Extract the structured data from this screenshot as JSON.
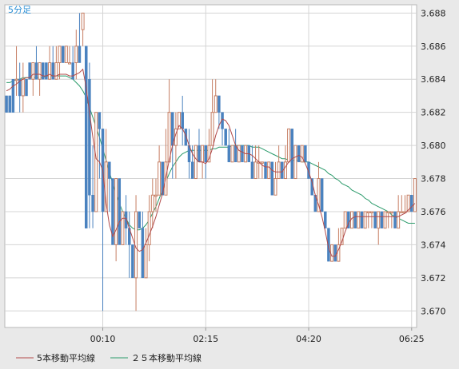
{
  "chart_data": {
    "type": "candlestick",
    "title": "5分足",
    "ylim": [
      3.669,
      3.6885
    ],
    "xlim": [
      -0.5,
      123.5
    ],
    "grid": true,
    "y_ticks": [
      "3.670",
      "3.672",
      "3.674",
      "3.676",
      "3.678",
      "3.680",
      "3.682",
      "3.684",
      "3.686",
      "3.688"
    ],
    "x_ticks": [
      {
        "index": 29,
        "label": "00:10"
      },
      {
        "index": 60,
        "label": "02:15"
      },
      {
        "index": 91,
        "label": "04:20"
      },
      {
        "index": 122,
        "label": "06:25"
      }
    ],
    "legend": [
      "5本移動平均線",
      "２５本移動平均線"
    ],
    "colors": {
      "up": "#c67e63",
      "down": "#4a82bf",
      "ma5": "#b24a4a",
      "ma25": "#2a9a6a",
      "grid": "#d4d4d4",
      "title": "#2a8fd6"
    },
    "candles": [
      [
        3.683,
        3.682,
        3.683,
        3.682
      ],
      [
        3.683,
        3.682,
        3.683,
        3.682
      ],
      [
        3.684,
        3.682,
        3.684,
        3.682
      ],
      [
        3.684,
        3.684,
        3.686,
        3.683
      ],
      [
        3.684,
        3.683,
        3.685,
        3.682
      ],
      [
        3.683,
        3.684,
        3.685,
        3.682
      ],
      [
        3.684,
        3.683,
        3.684,
        3.683
      ],
      [
        3.685,
        3.684,
        3.685,
        3.684
      ],
      [
        3.684,
        3.685,
        3.685,
        3.683
      ],
      [
        3.685,
        3.684,
        3.686,
        3.684
      ],
      [
        3.684,
        3.685,
        3.685,
        3.683
      ],
      [
        3.685,
        3.684,
        3.685,
        3.684
      ],
      [
        3.685,
        3.684,
        3.685,
        3.684
      ],
      [
        3.684,
        3.685,
        3.686,
        3.684
      ],
      [
        3.685,
        3.684,
        3.686,
        3.684
      ],
      [
        3.684,
        3.685,
        3.686,
        3.684
      ],
      [
        3.685,
        3.686,
        3.686,
        3.684
      ],
      [
        3.686,
        3.685,
        3.686,
        3.685
      ],
      [
        3.685,
        3.686,
        3.686,
        3.685
      ],
      [
        3.685,
        3.685,
        3.686,
        3.685
      ],
      [
        3.685,
        3.684,
        3.686,
        3.684
      ],
      [
        3.685,
        3.686,
        3.687,
        3.684
      ],
      [
        3.686,
        3.685,
        3.688,
        3.685
      ],
      [
        3.687,
        3.688,
        3.688,
        3.686
      ],
      [
        3.686,
        3.675,
        3.686,
        3.675
      ],
      [
        3.684,
        3.677,
        3.685,
        3.675
      ],
      [
        3.677,
        3.676,
        3.68,
        3.675
      ],
      [
        3.676,
        3.682,
        3.682,
        3.676
      ],
      [
        3.682,
        3.681,
        3.682,
        3.678
      ],
      [
        3.681,
        3.676,
        3.681,
        3.67
      ],
      [
        3.676,
        3.679,
        3.681,
        3.676
      ],
      [
        3.679,
        3.678,
        3.679,
        3.676
      ],
      [
        3.678,
        3.674,
        3.678,
        3.674
      ],
      [
        3.674,
        3.678,
        3.678,
        3.673
      ],
      [
        3.678,
        3.674,
        3.678,
        3.674
      ],
      [
        3.674,
        3.676,
        3.676,
        3.674
      ],
      [
        3.676,
        3.675,
        3.677,
        3.674
      ],
      [
        3.675,
        3.674,
        3.676,
        3.672
      ],
      [
        3.674,
        3.672,
        3.674,
        3.672
      ],
      [
        3.672,
        3.676,
        3.677,
        3.67
      ],
      [
        3.676,
        3.675,
        3.676,
        3.675
      ],
      [
        3.675,
        3.672,
        3.676,
        3.672
      ],
      [
        3.672,
        3.674,
        3.675,
        3.672
      ],
      [
        3.674,
        3.676,
        3.677,
        3.673
      ],
      [
        3.676,
        3.677,
        3.678,
        3.675
      ],
      [
        3.677,
        3.677,
        3.678,
        3.676
      ],
      [
        3.677,
        3.679,
        3.68,
        3.677
      ],
      [
        3.679,
        3.677,
        3.679,
        3.677
      ],
      [
        3.677,
        3.679,
        3.681,
        3.677
      ],
      [
        3.679,
        3.682,
        3.684,
        3.679
      ],
      [
        3.682,
        3.68,
        3.682,
        3.678
      ],
      [
        3.68,
        3.681,
        3.682,
        3.678
      ],
      [
        3.681,
        3.682,
        3.682,
        3.681
      ],
      [
        3.682,
        3.681,
        3.683,
        3.68
      ],
      [
        3.681,
        3.68,
        3.681,
        3.68
      ],
      [
        3.68,
        3.679,
        3.681,
        3.678
      ],
      [
        3.679,
        3.678,
        3.68,
        3.678
      ],
      [
        3.678,
        3.68,
        3.68,
        3.678
      ],
      [
        3.68,
        3.679,
        3.681,
        3.679
      ],
      [
        3.679,
        3.68,
        3.68,
        3.678
      ],
      [
        3.68,
        3.679,
        3.68,
        3.678
      ],
      [
        3.679,
        3.68,
        3.681,
        3.679
      ],
      [
        3.68,
        3.682,
        3.684,
        3.68
      ],
      [
        3.682,
        3.683,
        3.684,
        3.682
      ],
      [
        3.683,
        3.682,
        3.683,
        3.681
      ],
      [
        3.682,
        3.681,
        3.682,
        3.68
      ],
      [
        3.681,
        3.68,
        3.681,
        3.68
      ],
      [
        3.68,
        3.679,
        3.681,
        3.679
      ],
      [
        3.679,
        3.68,
        3.68,
        3.679
      ],
      [
        3.68,
        3.679,
        3.681,
        3.679
      ],
      [
        3.679,
        3.68,
        3.68,
        3.679
      ],
      [
        3.68,
        3.679,
        3.68,
        3.679
      ],
      [
        3.679,
        3.68,
        3.68,
        3.679
      ],
      [
        3.68,
        3.679,
        3.68,
        3.679
      ],
      [
        3.679,
        3.678,
        3.68,
        3.678
      ],
      [
        3.678,
        3.679,
        3.68,
        3.678
      ],
      [
        3.679,
        3.679,
        3.68,
        3.678
      ],
      [
        3.679,
        3.679,
        3.679,
        3.678
      ],
      [
        3.679,
        3.678,
        3.679,
        3.678
      ],
      [
        3.678,
        3.679,
        3.679,
        3.678
      ],
      [
        3.679,
        3.677,
        3.679,
        3.677
      ],
      [
        3.677,
        3.678,
        3.679,
        3.677
      ],
      [
        3.678,
        3.679,
        3.68,
        3.678
      ],
      [
        3.679,
        3.678,
        3.679,
        3.678
      ],
      [
        3.678,
        3.679,
        3.68,
        3.678
      ],
      [
        3.679,
        3.681,
        3.681,
        3.679
      ],
      [
        3.681,
        3.678,
        3.681,
        3.678
      ],
      [
        3.678,
        3.68,
        3.68,
        3.678
      ],
      [
        3.68,
        3.679,
        3.68,
        3.679
      ],
      [
        3.679,
        3.68,
        3.68,
        3.679
      ],
      [
        3.68,
        3.679,
        3.68,
        3.679
      ],
      [
        3.679,
        3.678,
        3.679,
        3.678
      ],
      [
        3.678,
        3.677,
        3.678,
        3.677
      ],
      [
        3.677,
        3.676,
        3.677,
        3.676
      ],
      [
        3.676,
        3.678,
        3.679,
        3.676
      ],
      [
        3.678,
        3.676,
        3.678,
        3.676
      ],
      [
        3.676,
        3.675,
        3.676,
        3.675
      ],
      [
        3.675,
        3.673,
        3.675,
        3.673
      ],
      [
        3.673,
        3.674,
        3.674,
        3.673
      ],
      [
        3.674,
        3.673,
        3.674,
        3.673
      ],
      [
        3.673,
        3.674,
        3.675,
        3.673
      ],
      [
        3.674,
        3.675,
        3.675,
        3.674
      ],
      [
        3.675,
        3.676,
        3.676,
        3.675
      ],
      [
        3.676,
        3.675,
        3.676,
        3.675
      ],
      [
        3.675,
        3.676,
        3.676,
        3.675
      ],
      [
        3.676,
        3.675,
        3.676,
        3.675
      ],
      [
        3.675,
        3.676,
        3.676,
        3.675
      ],
      [
        3.676,
        3.675,
        3.676,
        3.675
      ],
      [
        3.675,
        3.676,
        3.676,
        3.675
      ],
      [
        3.676,
        3.676,
        3.676,
        3.675
      ],
      [
        3.676,
        3.676,
        3.676,
        3.675
      ],
      [
        3.676,
        3.675,
        3.676,
        3.675
      ],
      [
        3.675,
        3.676,
        3.676,
        3.674
      ],
      [
        3.676,
        3.675,
        3.676,
        3.675
      ],
      [
        3.675,
        3.676,
        3.676,
        3.675
      ],
      [
        3.676,
        3.676,
        3.676,
        3.675
      ],
      [
        3.676,
        3.676,
        3.676,
        3.675
      ],
      [
        3.676,
        3.675,
        3.676,
        3.675
      ],
      [
        3.675,
        3.676,
        3.677,
        3.675
      ],
      [
        3.676,
        3.676,
        3.677,
        3.676
      ],
      [
        3.676,
        3.676,
        3.677,
        3.676
      ],
      [
        3.676,
        3.677,
        3.677,
        3.676
      ],
      [
        3.677,
        3.676,
        3.677,
        3.676
      ],
      [
        3.676,
        3.678,
        3.678,
        3.676
      ]
    ],
    "ma5": [
      3.6833,
      3.6834,
      3.6836,
      3.6837,
      3.6839,
      3.684,
      3.6841,
      3.6841,
      3.6843,
      3.6843,
      3.6843,
      3.6842,
      3.6842,
      3.6843,
      3.6842,
      3.6842,
      3.6843,
      3.6843,
      3.6843,
      3.6842,
      3.6842,
      3.6843,
      3.6844,
      3.6846,
      3.6835,
      3.682,
      3.6805,
      3.6792,
      3.679,
      3.6785,
      3.6765,
      3.6752,
      3.6745,
      3.6749,
      3.6754,
      3.6756,
      3.6756,
      3.675,
      3.6744,
      3.6738,
      3.6736,
      3.6737,
      3.6741,
      3.6746,
      3.6751,
      3.6757,
      3.6764,
      3.6771,
      3.6781,
      3.6791,
      3.68,
      3.6807,
      3.6812,
      3.681,
      3.6806,
      3.68,
      3.6795,
      3.6792,
      3.679,
      3.679,
      3.6789,
      3.6792,
      3.6798,
      3.6806,
      3.6812,
      3.6816,
      3.6815,
      3.6812,
      3.6806,
      3.68,
      3.6797,
      3.6796,
      3.6795,
      3.6795,
      3.6794,
      3.6792,
      3.679,
      3.6788,
      3.6787,
      3.6787,
      3.6785,
      3.6784,
      3.6784,
      3.6784,
      3.6787,
      3.679,
      3.6792,
      3.6793,
      3.6794,
      3.6793,
      3.6789,
      3.6784,
      3.6778,
      3.677,
      3.6764,
      3.6757,
      3.6748,
      3.6738,
      3.6733,
      3.6733,
      3.6737,
      3.6742,
      3.6748,
      3.6753,
      3.6756,
      3.6757,
      3.6757,
      3.6757,
      3.6757,
      3.6757,
      3.6757,
      3.6757,
      3.6757,
      3.6757,
      3.6757,
      3.6757,
      3.6757,
      3.6757,
      3.6757,
      3.6758,
      3.6759,
      3.6761,
      3.6763,
      3.6765
    ],
    "ma25": [
      3.6838,
      3.6838,
      3.6839,
      3.684,
      3.684,
      3.6841,
      3.6841,
      3.6841,
      3.6841,
      3.6841,
      3.6841,
      3.6841,
      3.6842,
      3.6842,
      3.6842,
      3.6842,
      3.6842,
      3.6842,
      3.6842,
      3.6841,
      3.684,
      3.6838,
      3.6836,
      3.6833,
      3.6829,
      3.6823,
      3.6817,
      3.6811,
      3.6805,
      3.6798,
      3.6791,
      3.6784,
      3.6777,
      3.6771,
      3.6765,
      3.676,
      3.6756,
      3.6752,
      3.675,
      3.6749,
      3.6749,
      3.675,
      3.6752,
      3.6755,
      3.6759,
      3.6763,
      3.6768,
      3.6773,
      3.6778,
      3.6783,
      3.6787,
      3.679,
      3.6793,
      3.6795,
      3.6796,
      3.6797,
      3.6797,
      3.6797,
      3.6797,
      3.6797,
      3.6797,
      3.6797,
      3.6798,
      3.6798,
      3.6799,
      3.6799,
      3.6799,
      3.6799,
      3.68,
      3.68,
      3.68,
      3.68,
      3.68,
      3.68,
      3.6799,
      3.6799,
      3.6799,
      3.6798,
      3.6797,
      3.6796,
      3.6795,
      3.6794,
      3.6793,
      3.6792,
      3.6792,
      3.6791,
      3.6791,
      3.6791,
      3.6791,
      3.679,
      3.679,
      3.679,
      3.6789,
      3.6788,
      3.6787,
      3.6786,
      3.6785,
      3.6783,
      3.6782,
      3.678,
      3.6779,
      3.6777,
      3.6776,
      3.6775,
      3.6773,
      3.6772,
      3.6771,
      3.677,
      3.6768,
      3.6767,
      3.6765,
      3.6764,
      3.6763,
      3.6762,
      3.6761,
      3.676,
      3.6758,
      3.6757,
      3.6756,
      3.6755,
      3.6754,
      3.6753,
      3.6753,
      3.6753
    ]
  }
}
